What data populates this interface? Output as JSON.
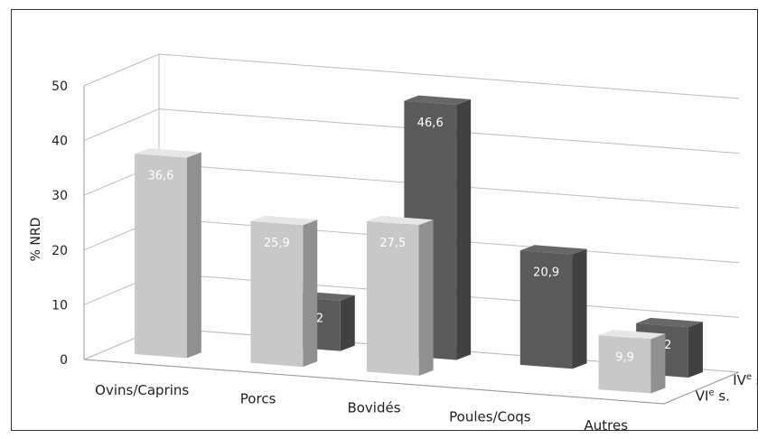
{
  "chart_data": {
    "type": "bar",
    "subtype": "3d-column",
    "categories": [
      "Ovins/Caprins",
      "Porcs",
      "Bovidés",
      "Poules/Coqs",
      "Autres"
    ],
    "series": [
      {
        "name": "VIe s.",
        "name_base": "VI",
        "name_sup": "e",
        "name_tail": " s.",
        "values": [
          36.6,
          25.9,
          27.5,
          null,
          9.9
        ],
        "labels": [
          "36,6",
          "25,9",
          "27,5",
          "",
          "9,9"
        ],
        "color": "#c8c8c8"
      },
      {
        "name": "IVe s.",
        "name_base": "IV",
        "name_sup": "e",
        "name_tail": " s.",
        "values": [
          null,
          9.2,
          46.6,
          20.9,
          9.2
        ],
        "labels": [
          "",
          "9,2",
          "46,6",
          "20,9",
          "9,2"
        ],
        "color": "#5a5a5a"
      }
    ],
    "ylabel": "% NRD",
    "ylim": [
      0,
      50
    ],
    "yticks": [
      "0",
      "10",
      "20",
      "30",
      "40",
      "50"
    ],
    "grid": true
  }
}
